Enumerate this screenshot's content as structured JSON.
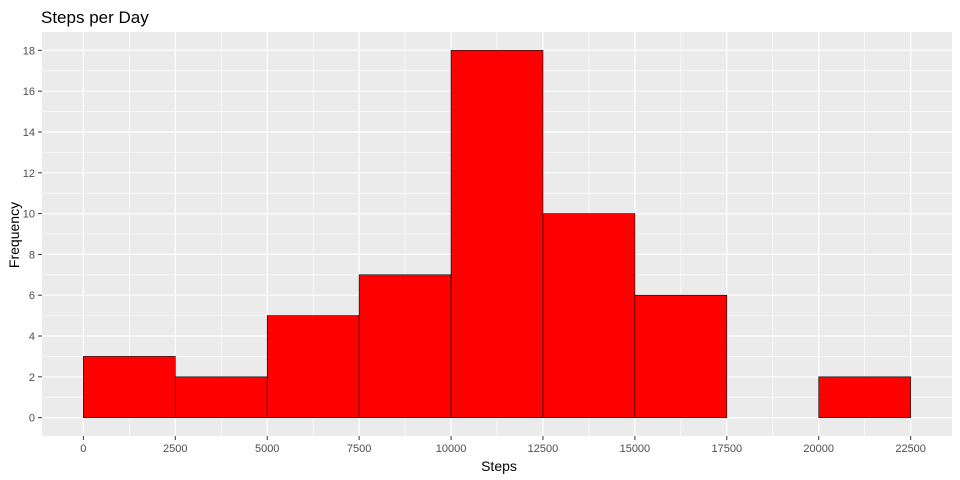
{
  "chart_data": {
    "type": "bar",
    "subtype": "histogram",
    "title": "Steps per Day",
    "xlabel": "Steps",
    "ylabel": "Frequency",
    "bins": [
      {
        "start": 0,
        "end": 2500,
        "count": 3
      },
      {
        "start": 2500,
        "end": 5000,
        "count": 2
      },
      {
        "start": 5000,
        "end": 7500,
        "count": 5
      },
      {
        "start": 7500,
        "end": 10000,
        "count": 7
      },
      {
        "start": 10000,
        "end": 12500,
        "count": 18
      },
      {
        "start": 12500,
        "end": 15000,
        "count": 10
      },
      {
        "start": 15000,
        "end": 17500,
        "count": 6
      },
      {
        "start": 17500,
        "end": 20000,
        "count": 0
      },
      {
        "start": 20000,
        "end": 22500,
        "count": 2
      }
    ],
    "xlim": [
      -1125,
      23625
    ],
    "ylim": [
      -0.9,
      18.9
    ],
    "x_ticks": [
      0,
      2500,
      5000,
      7500,
      10000,
      12500,
      15000,
      17500,
      20000,
      22500
    ],
    "y_ticks": [
      0,
      2,
      4,
      6,
      8,
      10,
      12,
      14,
      16,
      18
    ],
    "grid": true,
    "colors": {
      "bar_fill": "#ff0000",
      "bar_outline": "#000000",
      "panel_background": "#ebebeb",
      "grid_major": "#ffffff",
      "tick_label": "#4d4d4d"
    }
  }
}
